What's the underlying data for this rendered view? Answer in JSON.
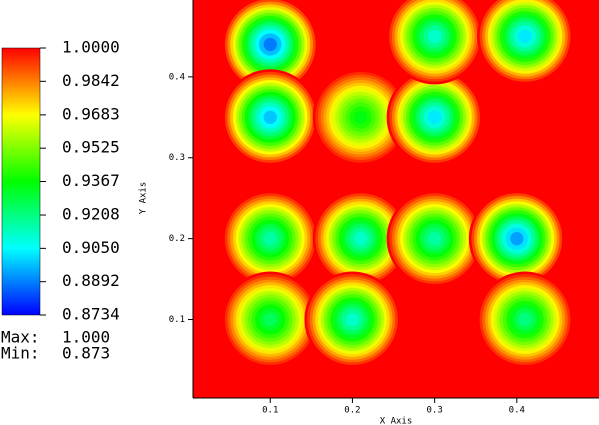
{
  "chart_data": {
    "type": "pseudocolor",
    "x_label": "X Axis",
    "y_label": "Y Axis",
    "xlim": [
      0.006,
      0.5
    ],
    "ylim": [
      0.003,
      0.495
    ],
    "xticks": [
      0.1,
      0.2,
      0.3,
      0.4
    ],
    "yticks": [
      0.1,
      0.2,
      0.3,
      0.4
    ],
    "colorbar_ticks": [
      {
        "value": 1.0,
        "label": "1.0000"
      },
      {
        "value": 0.9842,
        "label": "0.9842"
      },
      {
        "value": 0.9683,
        "label": "0.9683"
      },
      {
        "value": 0.9525,
        "label": "0.9525"
      },
      {
        "value": 0.9367,
        "label": "0.9367"
      },
      {
        "value": 0.9208,
        "label": "0.9208"
      },
      {
        "value": 0.905,
        "label": "0.9050"
      },
      {
        "value": 0.8892,
        "label": "0.8892"
      },
      {
        "value": 0.8734,
        "label": "0.8734"
      }
    ],
    "max_label": "Max:",
    "max": {
      "value": 1.0,
      "label": "1.000"
    },
    "min_label": "Min:",
    "min": {
      "value": 0.873,
      "label": "0.873"
    },
    "blobs": [
      {
        "x": 0.1,
        "y": 0.44,
        "value": 0.88
      },
      {
        "x": 0.1,
        "y": 0.35,
        "value": 0.89
      },
      {
        "x": 0.21,
        "y": 0.35,
        "value": 0.93
      },
      {
        "x": 0.3,
        "y": 0.35,
        "value": 0.895
      },
      {
        "x": 0.3,
        "y": 0.45,
        "value": 0.905
      },
      {
        "x": 0.41,
        "y": 0.45,
        "value": 0.895
      },
      {
        "x": 0.1,
        "y": 0.2,
        "value": 0.91
      },
      {
        "x": 0.21,
        "y": 0.2,
        "value": 0.905
      },
      {
        "x": 0.3,
        "y": 0.2,
        "value": 0.91
      },
      {
        "x": 0.4,
        "y": 0.2,
        "value": 0.885
      },
      {
        "x": 0.1,
        "y": 0.1,
        "value": 0.92
      },
      {
        "x": 0.2,
        "y": 0.1,
        "value": 0.905
      },
      {
        "x": 0.41,
        "y": 0.1,
        "value": 0.915
      }
    ]
  }
}
